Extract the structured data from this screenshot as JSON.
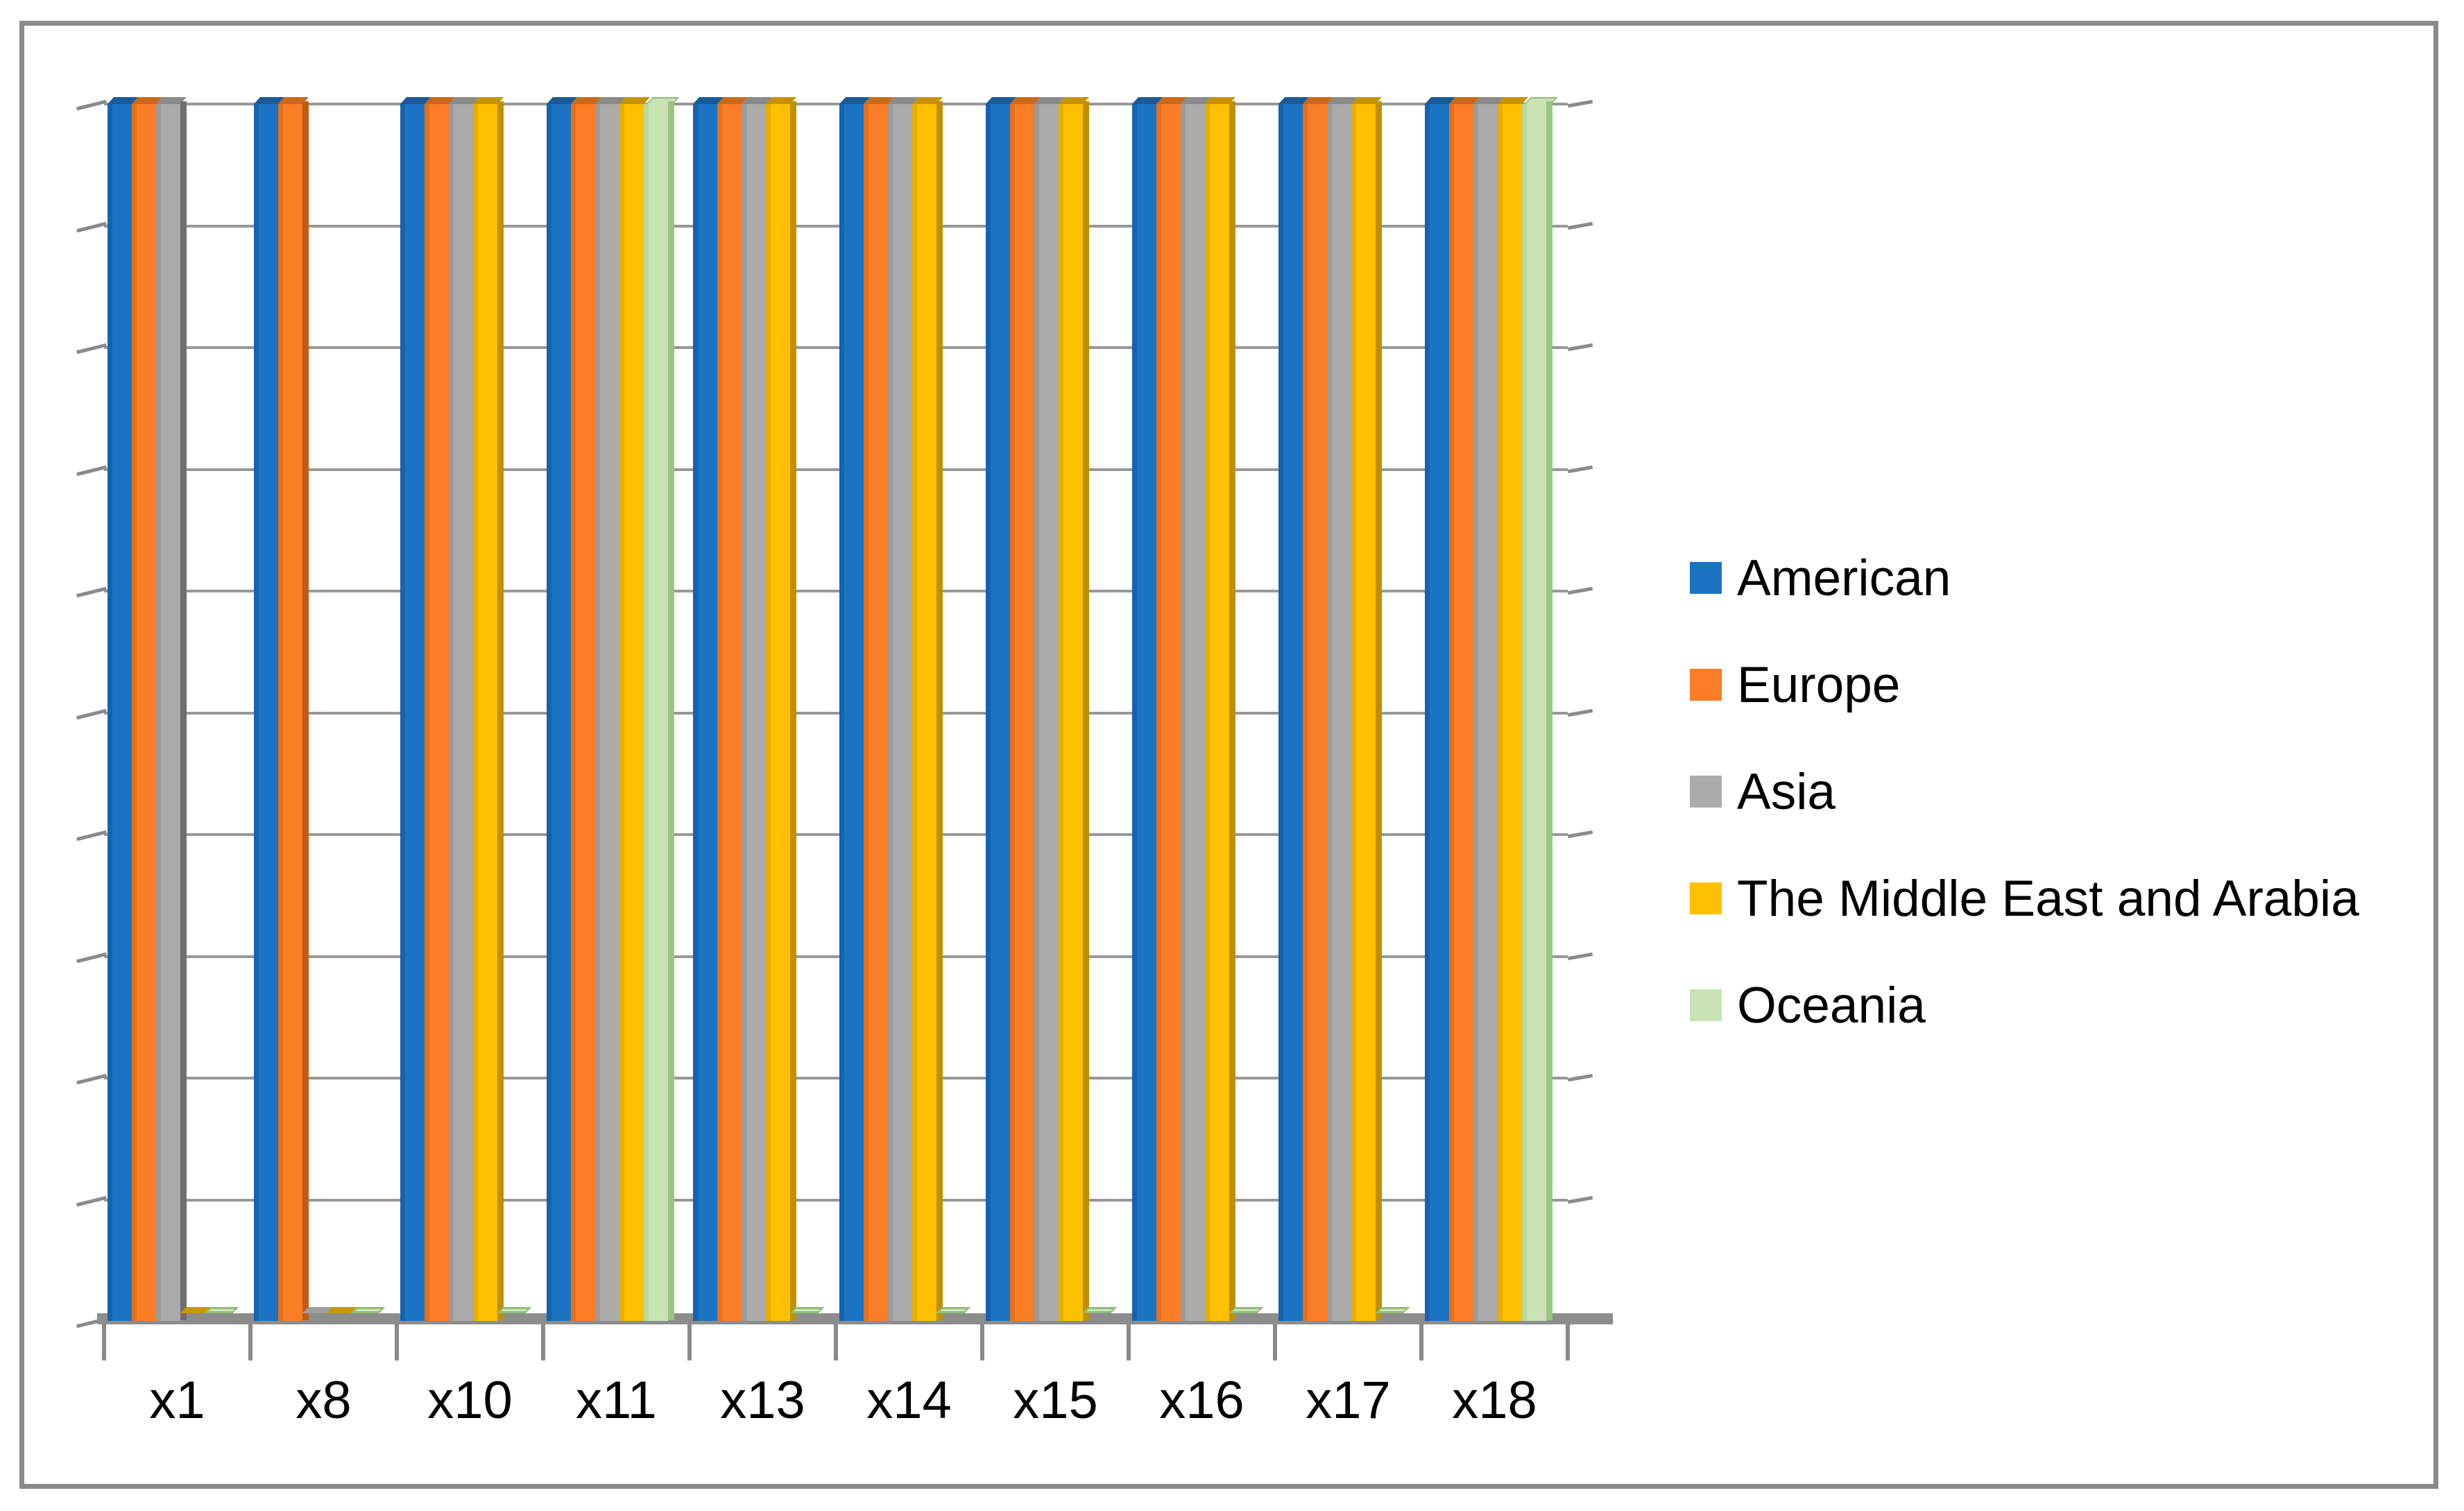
{
  "figure": {
    "title": "",
    "description_note": "3D clustered column chart, no y-axis tick labels, framed with gray border"
  },
  "chart_data": {
    "type": "bar",
    "style": "3d-clustered-column",
    "title": "",
    "xlabel": "",
    "ylabel": "",
    "categories": [
      "x1",
      "x8",
      "x10",
      "x11",
      "x13",
      "x14",
      "x15",
      "x16",
      "x17",
      "x18"
    ],
    "series": [
      {
        "name": "American",
        "color": "#1B73C4",
        "side_color": "#14568F",
        "top_color": "#1A5A96",
        "stub_color": "#1B73C4",
        "edge_color": "#1563AE",
        "values": [
          1,
          1,
          1,
          1,
          1,
          1,
          1,
          1,
          1,
          1
        ]
      },
      {
        "name": "Europe",
        "color": "#FB7D26",
        "side_color": "#C55A11",
        "top_color": "#C96A1A",
        "stub_color": "#C55A11",
        "edge_color": "#E66F1B",
        "values": [
          1,
          1,
          1,
          1,
          1,
          1,
          1,
          1,
          1,
          1
        ]
      },
      {
        "name": "Asia",
        "color": "#ABABAB",
        "side_color": "#6F6F6F",
        "top_color": "#8A8A8A",
        "stub_color": "#A0A0A0",
        "edge_color": "#9B9B9B",
        "values": [
          1,
          0,
          1,
          1,
          1,
          1,
          1,
          1,
          1,
          1
        ]
      },
      {
        "name": "The Middle East and Arabia",
        "color": "#FFC000",
        "side_color": "#BF9000",
        "top_color": "#C79200",
        "stub_color": "#C89800",
        "edge_color": "#E8AE00",
        "values": [
          0,
          0,
          1,
          1,
          1,
          1,
          1,
          1,
          1,
          1
        ]
      },
      {
        "name": "Oceania",
        "color": "#C9E3B5",
        "side_color": "#9CC584",
        "top_color": "#C9E3B5",
        "stub_color": "#CDE5BA",
        "edge_color": "#B8D8A1",
        "stub_border_color": "#90BC79",
        "top_border_color": "#90BC79",
        "values": [
          0,
          0,
          0,
          1,
          0,
          0,
          0,
          0,
          0,
          1
        ]
      }
    ],
    "value_semantics": "1 = column drawn to full plot height (category present for region); 0 = flat zero stub on the baseline",
    "y_axis": {
      "tick_labels": [],
      "labels_visible": false,
      "divisions": 10,
      "range": [
        0,
        1
      ],
      "grid": true
    },
    "x_axis": {
      "labels_visible": true
    },
    "legend": {
      "position": "right",
      "entries": [
        "American",
        "Europe",
        "Asia",
        "The Middle East and Arabia",
        "Oceania"
      ]
    }
  }
}
